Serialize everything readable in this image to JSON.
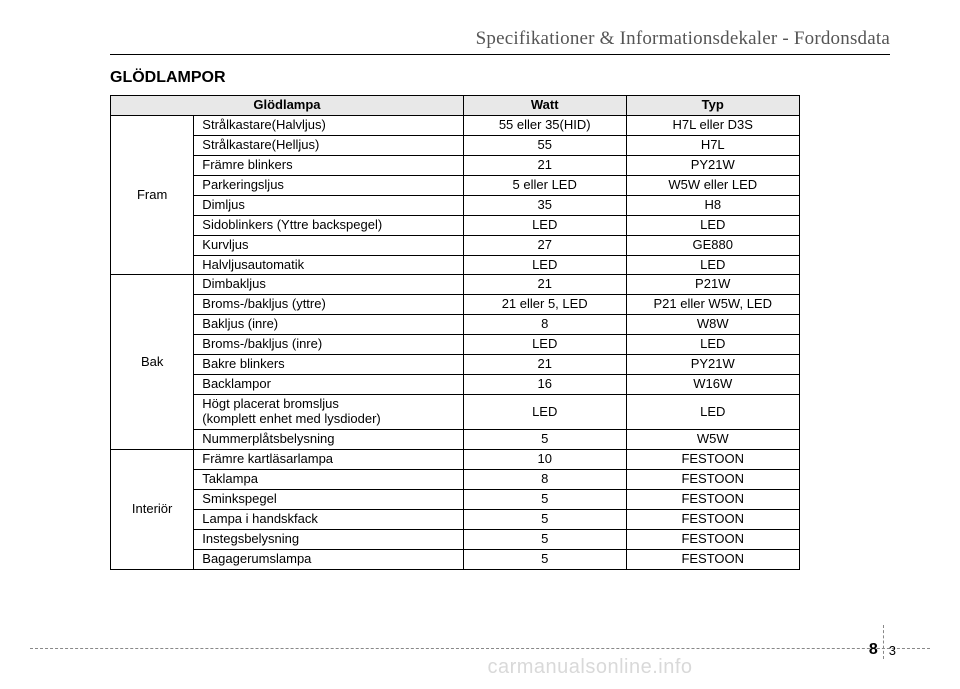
{
  "header": {
    "title": "Specifikationer & Informationsdekaler - Fordonsdata"
  },
  "section_title": "GLÖDLAMPOR",
  "table": {
    "headers": {
      "lamp": "Glödlampa",
      "watt": "Watt",
      "type": "Typ"
    },
    "header_bg": "#e8e8e8",
    "border_color": "#000000",
    "font_size_pt": 13,
    "groups": [
      {
        "label": "Fram",
        "rows": [
          {
            "name": "Strålkastare(Halvljus)",
            "watt": "55 eller 35(HID)",
            "type": "H7L eller D3S"
          },
          {
            "name": "Strålkastare(Helljus)",
            "watt": "55",
            "type": "H7L"
          },
          {
            "name": "Främre blinkers",
            "watt": "21",
            "type": "PY21W"
          },
          {
            "name": "Parkeringsljus",
            "watt": "5 eller LED",
            "type": "W5W eller LED"
          },
          {
            "name": "Dimljus",
            "watt": "35",
            "type": "H8"
          },
          {
            "name": "Sidoblinkers (Yttre backspegel)",
            "watt": "LED",
            "type": "LED"
          },
          {
            "name": "Kurvljus",
            "watt": "27",
            "type": "GE880"
          },
          {
            "name": "Halvljusautomatik",
            "watt": "LED",
            "type": "LED"
          }
        ]
      },
      {
        "label": "Bak",
        "rows": [
          {
            "name": "Dimbakljus",
            "watt": "21",
            "type": "P21W"
          },
          {
            "name": "Broms-/bakljus (yttre)",
            "watt": "21 eller 5, LED",
            "type": "P21 eller W5W, LED"
          },
          {
            "name": "Bakljus (inre)",
            "watt": "8",
            "type": "W8W"
          },
          {
            "name": "Broms-/bakljus (inre)",
            "watt": "LED",
            "type": "LED"
          },
          {
            "name": "Bakre blinkers",
            "watt": "21",
            "type": "PY21W"
          },
          {
            "name": "Backlampor",
            "watt": "16",
            "type": "W16W"
          },
          {
            "name": "Högt placerat bromsljus\n(komplett enhet med lysdioder)",
            "watt": "LED",
            "type": "LED"
          },
          {
            "name": "Nummerplåtsbelysning",
            "watt": "5",
            "type": "W5W"
          }
        ]
      },
      {
        "label": "Interiör",
        "rows": [
          {
            "name": "Främre kartläsarlampa",
            "watt": "10",
            "type": "FESTOON"
          },
          {
            "name": "Taklampa",
            "watt": "8",
            "type": "FESTOON"
          },
          {
            "name": "Sminkspegel",
            "watt": "5",
            "type": "FESTOON"
          },
          {
            "name": "Lampa i handskfack",
            "watt": "5",
            "type": "FESTOON"
          },
          {
            "name": "Instegsbelysning",
            "watt": "5",
            "type": "FESTOON"
          },
          {
            "name": "Bagagerumslampa",
            "watt": "5",
            "type": "FESTOON"
          }
        ]
      }
    ]
  },
  "footer": {
    "page_main": "8",
    "page_sub": "3",
    "dash_color": "#888888"
  },
  "watermark": "carmanualsonline.info"
}
